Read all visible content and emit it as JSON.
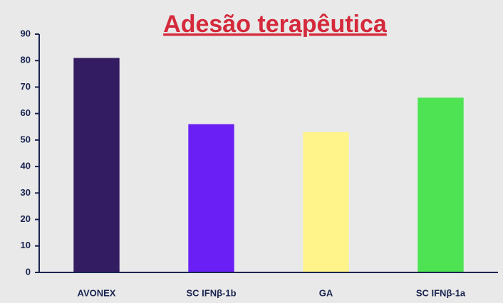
{
  "chart_data": {
    "type": "bar",
    "title": "Adesão terapêutica",
    "categories": [
      "AVONEX",
      "SC IFNβ-1b",
      "GA",
      "SC IFNβ-1a"
    ],
    "values": [
      81,
      56,
      53,
      66
    ],
    "colors": [
      "#341c63",
      "#6a1ff5",
      "#fff48a",
      "#4de352"
    ],
    "ylim": [
      0,
      90
    ],
    "yticks": [
      0,
      10,
      20,
      30,
      40,
      50,
      60,
      70,
      80,
      90
    ],
    "grid": false
  }
}
